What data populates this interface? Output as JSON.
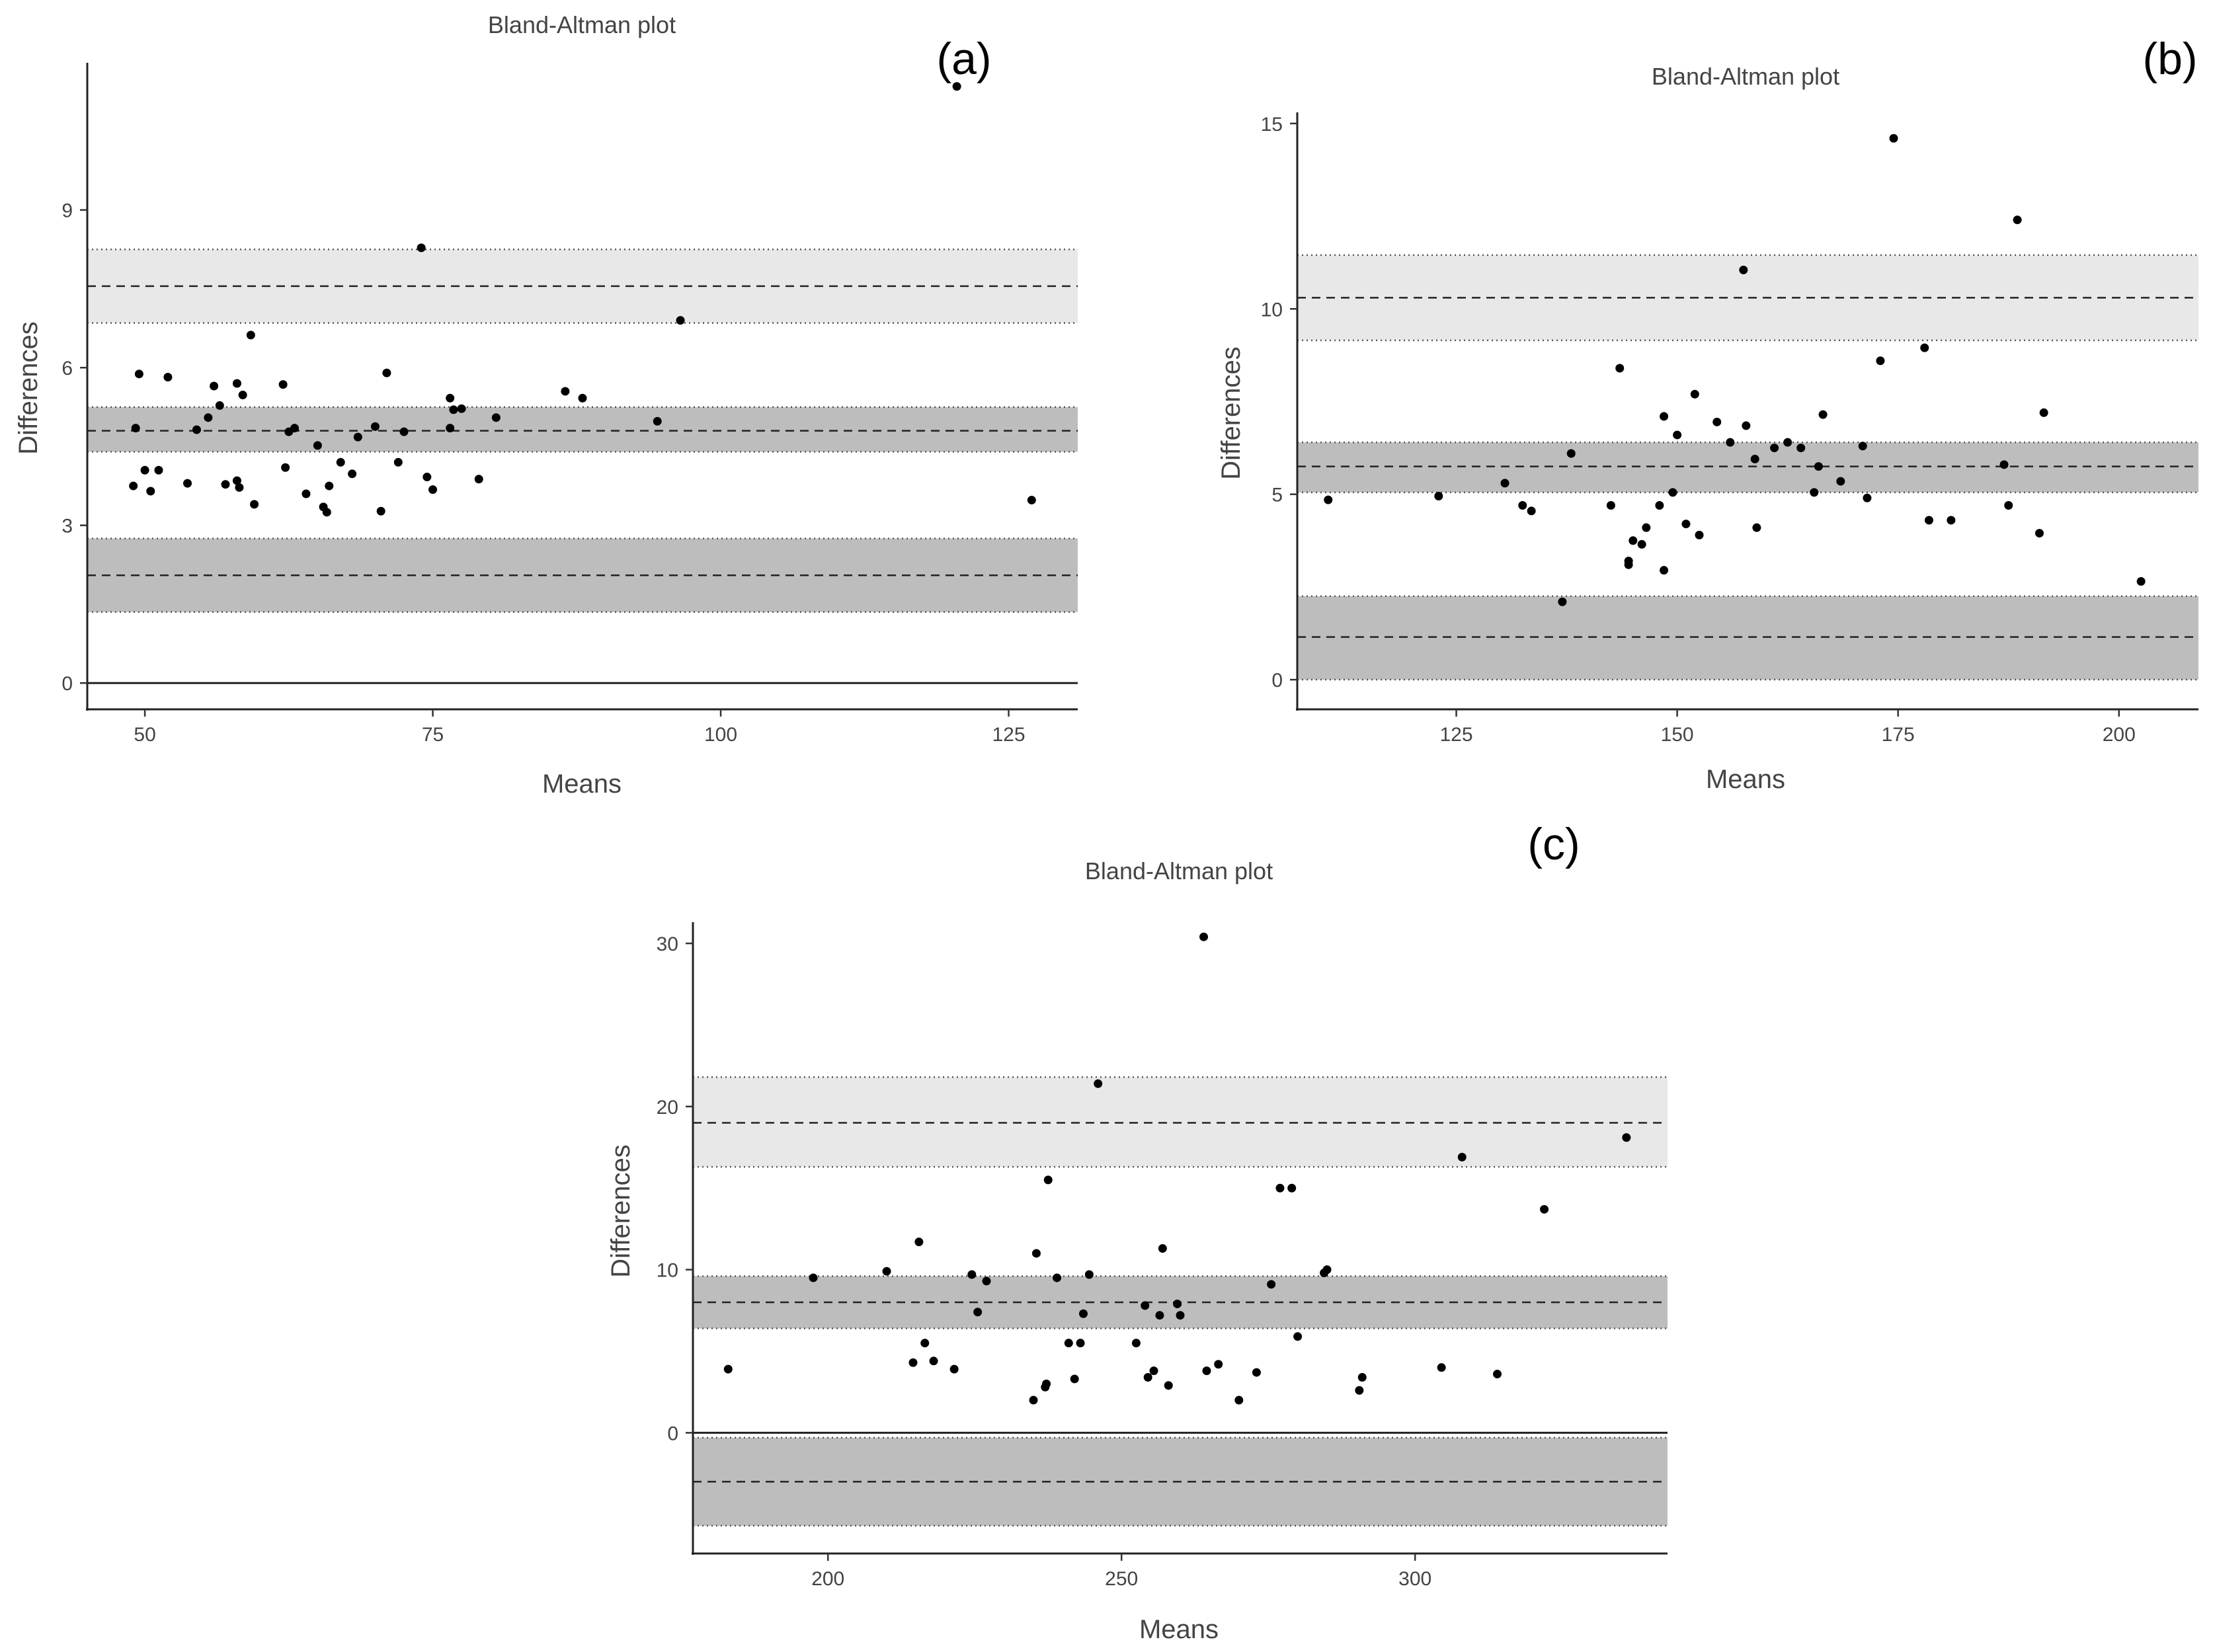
{
  "chart_data": [
    {
      "panel": "(a)",
      "type": "scatter",
      "title": "Bland-Altman plot",
      "xlabel": "Means",
      "ylabel": "Differences",
      "xlim": [
        45,
        131
      ],
      "ylim": [
        -0.5,
        11.8
      ],
      "xticks": [
        50,
        75,
        100,
        125
      ],
      "yticks": [
        0,
        3,
        6,
        9
      ],
      "zero_line": true,
      "bands": [
        {
          "name": "upper limit of agreement",
          "center": 7.55,
          "lower": 6.85,
          "upper": 8.25,
          "fill": "#e8e8e8"
        },
        {
          "name": "mean difference",
          "center": 4.8,
          "lower": 4.4,
          "upper": 5.25,
          "fill": "#bdbdbd"
        },
        {
          "name": "lower limit of agreement",
          "center": 2.05,
          "lower": 1.35,
          "upper": 2.75,
          "fill": "#bdbdbd"
        }
      ],
      "x": [
        49.0,
        49.5,
        49.2,
        50.0,
        50.5,
        51.2,
        52.0,
        53.7,
        54.5,
        55.5,
        56.0,
        56.5,
        57.0,
        58.0,
        58.2,
        58.0,
        58.5,
        59.2,
        59.5,
        62.0,
        62.2,
        62.5,
        63.0,
        64.0,
        65.0,
        65.5,
        65.8,
        66.0,
        67.0,
        68.0,
        68.5,
        70.0,
        70.5,
        71.0,
        72.0,
        72.5,
        74.0,
        74.5,
        75.0,
        76.5,
        76.8,
        76.5,
        77.5,
        79.0,
        80.5,
        86.5,
        88.0,
        94.5,
        96.5,
        120.5,
        127.0
      ],
      "y": [
        3.75,
        5.88,
        4.85,
        4.05,
        3.65,
        4.05,
        5.82,
        3.8,
        4.82,
        5.05,
        5.65,
        5.28,
        3.78,
        5.7,
        3.72,
        3.85,
        5.48,
        6.62,
        3.4,
        5.68,
        4.1,
        4.78,
        4.85,
        3.6,
        4.52,
        3.35,
        3.25,
        3.75,
        4.2,
        3.98,
        4.68,
        4.88,
        3.27,
        5.9,
        4.2,
        4.78,
        8.28,
        3.92,
        3.68,
        4.85,
        5.2,
        5.42,
        5.22,
        3.88,
        5.05,
        5.55,
        5.42,
        4.98,
        6.9,
        11.35,
        3.48
      ]
    },
    {
      "panel": "(b)",
      "type": "scatter",
      "title": "Bland-Altman plot",
      "xlabel": "Means",
      "ylabel": "Differences",
      "xlim": [
        107,
        209
      ],
      "ylim": [
        -0.8,
        15.3
      ],
      "xticks": [
        125,
        150,
        175,
        200
      ],
      "yticks": [
        0,
        5,
        10,
        15
      ],
      "zero_line": false,
      "bands": [
        {
          "name": "upper limit of agreement",
          "center": 10.3,
          "lower": 9.15,
          "upper": 11.45,
          "fill": "#e8e8e8"
        },
        {
          "name": "mean difference",
          "center": 5.75,
          "lower": 5.05,
          "upper": 6.4,
          "fill": "#bdbdbd"
        },
        {
          "name": "lower limit of agreement",
          "center": 1.15,
          "lower": 0.0,
          "upper": 2.25,
          "fill": "#bdbdbd"
        }
      ],
      "x": [
        110.5,
        123.0,
        130.5,
        132.5,
        133.5,
        137.0,
        138.0,
        142.5,
        143.5,
        144.5,
        144.5,
        145.0,
        146.0,
        146.5,
        148.0,
        148.5,
        148.5,
        149.5,
        150.0,
        151.0,
        152.0,
        152.5,
        154.5,
        156.0,
        157.5,
        157.8,
        158.8,
        159.0,
        161.0,
        162.5,
        164.0,
        165.5,
        166.0,
        166.5,
        168.5,
        171.0,
        171.5,
        173.0,
        174.5,
        178.0,
        178.5,
        181.0,
        187.0,
        187.5,
        188.5,
        191.0,
        191.5,
        202.5
      ],
      "y": [
        4.85,
        4.95,
        5.3,
        4.7,
        4.55,
        2.1,
        6.1,
        4.7,
        8.4,
        3.1,
        3.2,
        3.75,
        3.65,
        4.1,
        4.7,
        7.1,
        2.95,
        5.05,
        6.6,
        4.2,
        7.7,
        3.9,
        6.95,
        6.4,
        11.05,
        6.85,
        5.95,
        4.1,
        6.25,
        6.4,
        6.25,
        5.05,
        5.75,
        7.15,
        5.35,
        6.3,
        4.9,
        8.6,
        14.6,
        8.95,
        4.3,
        4.3,
        5.8,
        4.7,
        12.4,
        3.95,
        7.2,
        2.65
      ]
    },
    {
      "panel": "(c)",
      "type": "scatter",
      "title": "Bland-Altman plot",
      "xlabel": "Means",
      "ylabel": "Differences",
      "xlim": [
        177,
        343
      ],
      "ylim": [
        -7.4,
        31.3
      ],
      "xticks": [
        200,
        250,
        300
      ],
      "yticks": [
        0,
        10,
        20,
        30
      ],
      "zero_line": true,
      "bands": [
        {
          "name": "upper limit of agreement",
          "center": 19.0,
          "lower": 16.3,
          "upper": 21.8,
          "fill": "#e8e8e8"
        },
        {
          "name": "mean difference",
          "center": 8.0,
          "lower": 6.4,
          "upper": 9.6,
          "fill": "#bdbdbd"
        },
        {
          "name": "lower limit of agreement",
          "center": -3.0,
          "lower": -5.7,
          "upper": -0.3,
          "fill": "#bdbdbd"
        }
      ],
      "x": [
        183.0,
        197.5,
        210.0,
        214.5,
        215.5,
        216.5,
        218.0,
        221.5,
        224.5,
        225.5,
        227.0,
        235.0,
        235.5,
        237.0,
        237.2,
        237.5,
        239.0,
        241.0,
        242.0,
        243.0,
        243.5,
        244.5,
        246.0,
        252.5,
        254.0,
        254.5,
        255.5,
        256.5,
        257.0,
        258.0,
        259.5,
        260.0,
        264.0,
        264.5,
        266.5,
        270.0,
        273.0,
        275.5,
        277.0,
        279.0,
        280.0,
        284.5,
        285.0,
        290.5,
        291.0,
        304.5,
        308.0,
        314.0,
        322.0,
        336.0
      ],
      "y": [
        3.9,
        9.5,
        9.9,
        4.3,
        11.7,
        5.5,
        4.4,
        3.9,
        9.7,
        7.4,
        9.3,
        2.0,
        11.0,
        2.8,
        3.0,
        15.5,
        9.5,
        5.5,
        3.3,
        5.5,
        7.3,
        9.7,
        21.4,
        5.5,
        7.8,
        3.4,
        3.8,
        7.2,
        11.3,
        2.9,
        7.9,
        7.2,
        30.4,
        3.8,
        4.2,
        2.0,
        3.7,
        9.1,
        15.0,
        15.0,
        5.9,
        9.8,
        10.0,
        2.6,
        3.4,
        4.0,
        16.9,
        3.6,
        13.7,
        18.1
      ]
    }
  ]
}
